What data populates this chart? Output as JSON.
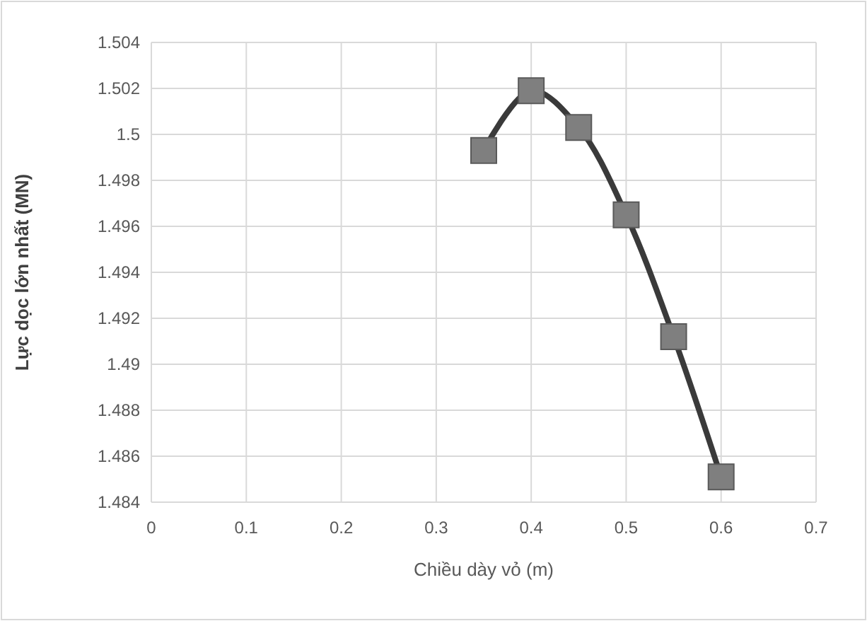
{
  "chart_data": {
    "type": "line",
    "xlabel": "Chiều dày vỏ (m)",
    "ylabel": "Lực dọc lớn nhất (MN)",
    "x": [
      0.35,
      0.4,
      0.45,
      0.5,
      0.55,
      0.6
    ],
    "series": [
      {
        "color": "#3a3a3a",
        "values": [
          1.4993,
          1.5019,
          1.5003,
          1.4965,
          1.4912,
          1.4851
        ]
      }
    ],
    "xlim": [
      0,
      0.7
    ],
    "xticks": [
      0,
      0.1,
      0.2,
      0.3,
      0.4,
      0.5,
      0.6,
      0.7
    ],
    "ylim": [
      1.484,
      1.504
    ],
    "yticks": [
      1.484,
      1.486,
      1.488,
      1.49,
      1.492,
      1.494,
      1.496,
      1.498,
      1.5,
      1.502,
      1.504
    ],
    "grid": true,
    "marker": "square",
    "line_style": "solid"
  }
}
